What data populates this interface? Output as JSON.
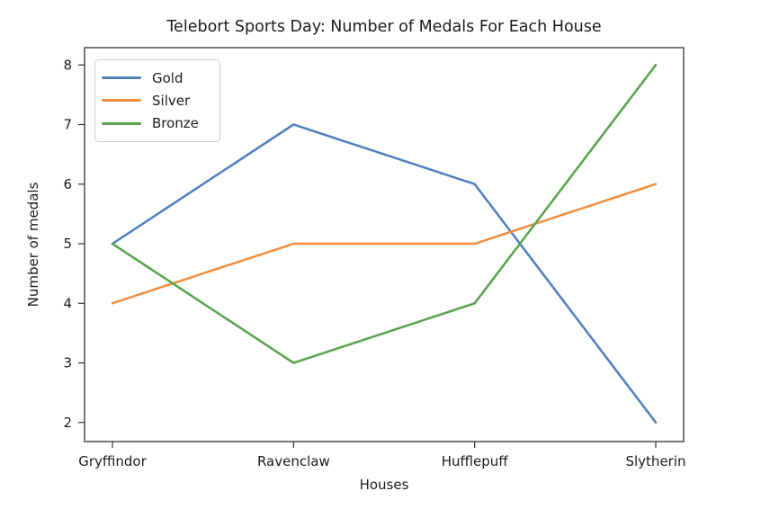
{
  "figure": {
    "background": "#ffffff",
    "axis_color": "#333333",
    "text_color": "#1c1c1c",
    "legend_border_color": "#cccccc"
  },
  "chart_data": {
    "type": "line",
    "title": "Telebort Sports Day: Number of Medals For Each House",
    "xlabel": "Houses",
    "ylabel": "Number of medals",
    "categories": [
      "Gryffindor",
      "Ravenclaw",
      "Hufflepuff",
      "Slytherin"
    ],
    "series": [
      {
        "name": "Gold",
        "color": "#4e7fbe",
        "values": [
          5,
          7,
          6,
          2
        ]
      },
      {
        "name": "Silver",
        "color": "#ef8e3d",
        "values": [
          4,
          5,
          5,
          6
        ]
      },
      {
        "name": "Bronze",
        "color": "#55a54b",
        "values": [
          5,
          3,
          4,
          8
        ]
      }
    ],
    "yticks": [
      2,
      3,
      4,
      5,
      6,
      7,
      8
    ],
    "ylim": [
      1.68,
      8.29
    ],
    "grid": false,
    "legend_position": "upper-left"
  }
}
